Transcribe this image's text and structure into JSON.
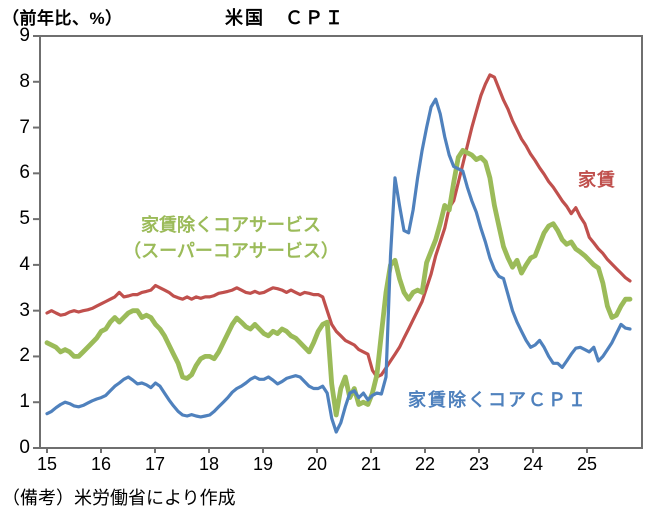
{
  "chart": {
    "unit_label": "（前年比、%）",
    "title": "米国　ＣＰＩ",
    "note": "（備考）米労働省により作成"
  },
  "chart_data": {
    "type": "line",
    "title": "米国 CPI",
    "subtitle": "",
    "ylabel": "（前年比、%）",
    "xlabel": "",
    "ylim": [
      0,
      9
    ],
    "y_ticks": [
      0,
      1,
      2,
      3,
      4,
      5,
      6,
      7,
      8,
      9
    ],
    "x_tick_labels": [
      "15",
      "16",
      "17",
      "18",
      "19",
      "20",
      "21",
      "22",
      "23",
      "24",
      "25"
    ],
    "x_unit": "month",
    "x_start": "2015-01",
    "x_end": "2025-10",
    "grid": false,
    "legend_position": "inline-annotations",
    "series": [
      {
        "name": "家賃",
        "color": "#C0504D",
        "values": [
          2.95,
          3.0,
          2.95,
          2.9,
          2.92,
          2.97,
          3.0,
          2.97,
          3.0,
          3.02,
          3.05,
          3.1,
          3.15,
          3.2,
          3.25,
          3.3,
          3.4,
          3.3,
          3.32,
          3.35,
          3.35,
          3.4,
          3.42,
          3.45,
          3.55,
          3.5,
          3.45,
          3.4,
          3.32,
          3.28,
          3.25,
          3.3,
          3.25,
          3.3,
          3.27,
          3.3,
          3.3,
          3.33,
          3.38,
          3.4,
          3.42,
          3.45,
          3.5,
          3.45,
          3.4,
          3.38,
          3.42,
          3.38,
          3.4,
          3.45,
          3.5,
          3.48,
          3.45,
          3.4,
          3.45,
          3.4,
          3.35,
          3.4,
          3.38,
          3.35,
          3.35,
          3.3,
          3.0,
          2.7,
          2.55,
          2.45,
          2.35,
          2.3,
          2.25,
          2.15,
          2.1,
          2.05,
          1.7,
          1.55,
          1.6,
          1.75,
          1.9,
          2.05,
          2.2,
          2.4,
          2.6,
          2.8,
          3.0,
          3.2,
          3.5,
          3.8,
          4.2,
          4.5,
          4.8,
          5.25,
          5.4,
          5.8,
          6.2,
          6.6,
          7.0,
          7.35,
          7.7,
          7.95,
          8.15,
          8.1,
          7.85,
          7.6,
          7.4,
          7.15,
          6.95,
          6.75,
          6.6,
          6.42,
          6.28,
          6.12,
          5.98,
          5.82,
          5.7,
          5.55,
          5.4,
          5.28,
          5.12,
          5.25,
          5.05,
          4.9,
          4.6,
          4.48,
          4.35,
          4.25,
          4.12,
          4.02,
          3.92,
          3.82,
          3.72,
          3.65
        ]
      },
      {
        "name": "家賃除くコアサービス（スーパーコアサービス）",
        "label_lines": [
          "家賃除くコアサービス",
          "（スーパーコアサービス）"
        ],
        "color": "#9BBB59",
        "values": [
          2.3,
          2.25,
          2.2,
          2.1,
          2.15,
          2.1,
          2.0,
          2.0,
          2.1,
          2.2,
          2.3,
          2.4,
          2.55,
          2.6,
          2.75,
          2.85,
          2.75,
          2.85,
          2.95,
          3.0,
          3.0,
          2.85,
          2.9,
          2.85,
          2.7,
          2.6,
          2.45,
          2.25,
          2.05,
          1.85,
          1.55,
          1.52,
          1.6,
          1.8,
          1.95,
          2.0,
          2.0,
          1.95,
          2.1,
          2.3,
          2.5,
          2.7,
          2.84,
          2.75,
          2.65,
          2.6,
          2.7,
          2.6,
          2.5,
          2.45,
          2.55,
          2.5,
          2.6,
          2.55,
          2.45,
          2.4,
          2.3,
          2.2,
          2.1,
          2.3,
          2.55,
          2.7,
          2.75,
          1.4,
          0.72,
          1.3,
          1.55,
          1.1,
          1.3,
          0.95,
          1.0,
          0.95,
          1.2,
          1.6,
          2.5,
          3.4,
          4.0,
          4.1,
          3.7,
          3.4,
          3.25,
          3.4,
          3.45,
          3.4,
          4.05,
          4.3,
          4.55,
          4.9,
          5.3,
          5.2,
          5.8,
          6.35,
          6.5,
          6.45,
          6.4,
          6.3,
          6.35,
          6.25,
          5.9,
          5.3,
          4.85,
          4.4,
          4.15,
          3.95,
          4.1,
          3.82,
          4.0,
          4.15,
          4.2,
          4.45,
          4.7,
          4.85,
          4.9,
          4.75,
          4.55,
          4.45,
          4.5,
          4.35,
          4.28,
          4.2,
          4.1,
          4.0,
          3.93,
          3.6,
          3.1,
          2.85,
          2.9,
          3.1,
          3.25,
          3.25
        ]
      },
      {
        "name": "家賃除くコアＣＰＩ",
        "color": "#4F81BD",
        "values": [
          0.75,
          0.8,
          0.88,
          0.95,
          1.0,
          0.97,
          0.92,
          0.9,
          0.93,
          0.98,
          1.03,
          1.07,
          1.1,
          1.15,
          1.25,
          1.35,
          1.42,
          1.5,
          1.55,
          1.48,
          1.4,
          1.42,
          1.38,
          1.32,
          1.42,
          1.35,
          1.2,
          1.05,
          0.92,
          0.8,
          0.72,
          0.7,
          0.73,
          0.7,
          0.68,
          0.7,
          0.72,
          0.8,
          0.9,
          1.0,
          1.1,
          1.22,
          1.3,
          1.35,
          1.42,
          1.5,
          1.55,
          1.5,
          1.5,
          1.55,
          1.48,
          1.4,
          1.45,
          1.52,
          1.55,
          1.58,
          1.55,
          1.45,
          1.35,
          1.3,
          1.3,
          1.35,
          1.2,
          0.65,
          0.35,
          0.55,
          0.9,
          1.2,
          1.25,
          1.1,
          1.2,
          1.05,
          1.15,
          1.2,
          1.18,
          1.55,
          4.2,
          5.9,
          5.3,
          4.75,
          4.7,
          5.2,
          5.9,
          6.5,
          7.0,
          7.45,
          7.62,
          7.3,
          6.8,
          6.4,
          6.15,
          6.1,
          6.05,
          5.7,
          5.4,
          5.15,
          4.8,
          4.5,
          4.15,
          3.9,
          3.75,
          3.7,
          3.35,
          3.0,
          2.75,
          2.55,
          2.35,
          2.2,
          2.25,
          2.35,
          2.2,
          2.0,
          1.85,
          1.85,
          1.76,
          1.9,
          2.05,
          2.18,
          2.2,
          2.15,
          2.1,
          2.2,
          1.9,
          2.0,
          2.15,
          2.3,
          2.5,
          2.7,
          2.62,
          2.6
        ]
      }
    ]
  }
}
